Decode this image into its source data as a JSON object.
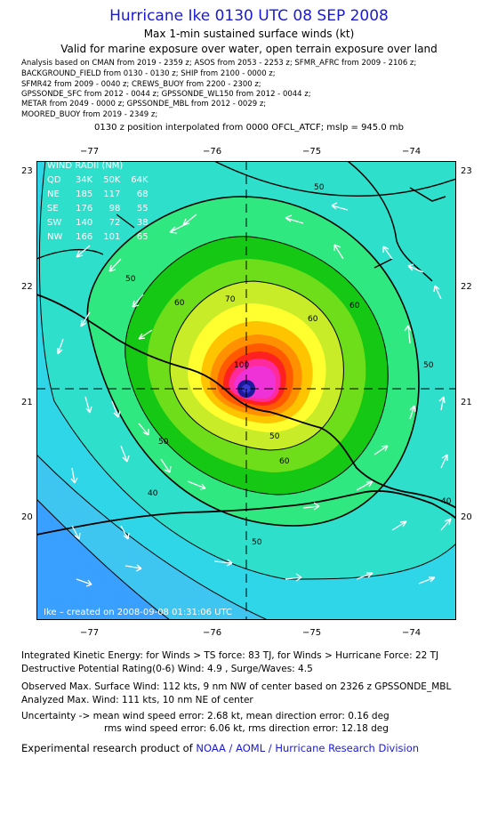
{
  "title": "Hurricane Ike 0130 UTC 08 SEP 2008",
  "subtitle1": "Max 1-min sustained surface winds (kt)",
  "subtitle2": "Valid for marine exposure over water, open terrain exposure over land",
  "analysis_lines": [
    "Analysis based on  CMAN from 2019 - 2359 z;  ASOS from 2053 - 2253 z;  SFMR_AFRC from 2009 - 2106 z;",
    "BACKGROUND_FIELD from 0130 - 0130 z;  SHIP from 2100 - 0000 z;",
    "SFMR42 from 2009 - 0040 z;  CREWS_BUOY from 2200 - 2300 z;",
    "GPSSONDE_SFC from 2012 - 0044 z;  GPSSONDE_WL150 from 2012 - 0044 z;",
    "METAR from 2049 - 0000 z;  GPSSONDE_MBL from 2012 - 0029 z;",
    "MOORED_BUOY from 2019 - 2349 z;"
  ],
  "position_line": "0130 z position interpolated from 0000 OFCL_ATCF; mslp = 945.0 mb",
  "map": {
    "lon_ticks": [
      "−77",
      "−76",
      "−75",
      "−74"
    ],
    "lat_ticks": [
      "23",
      "22",
      "21",
      "20"
    ],
    "center_marker": "hurricane-center",
    "contour_labels": [
      "50",
      "60",
      "70",
      "100",
      "60",
      "50",
      "50",
      "40",
      "40",
      "60",
      "50",
      "50",
      "60",
      "50"
    ],
    "wind_radii": {
      "header": "WIND RADII (NM)",
      "cols": [
        "QD",
        "34K",
        "50K",
        "64K"
      ],
      "rows": [
        [
          "NE",
          "185",
          "117",
          "68"
        ],
        [
          "SE",
          "176",
          "98",
          "55"
        ],
        [
          "SW",
          "140",
          "72",
          "38"
        ],
        [
          "NW",
          "166",
          "101",
          "65"
        ]
      ]
    },
    "created": "Ike – created on 2008-09-08 01:31:06 UTC",
    "colors": {
      "land_outline": "#000000",
      "axis_dash": "#000000",
      "arrow": "#ffffff"
    }
  },
  "footer": {
    "ike_line": "Integrated Kinetic Energy:  for Winds > TS force: 83 TJ,  for Winds > Hurricane Force: 22 TJ",
    "dpr_line": "Destructive Potential Rating(0-6)   Wind: 4.9 , Surge/Waves: 4.5",
    "obs_line": "Observed Max. Surface Wind: 112 kts, 9 nm NW of center based on 2326 z GPSSONDE_MBL",
    "analyzed_line": "Analyzed Max. Wind: 111 kts, 10 nm NE of center",
    "uncert_line1": "Uncertainty -> mean wind speed error: 2.68 kt,   mean direction error: 0.16 deg",
    "uncert_line2": "rms wind speed error: 6.06 kt,   rms direction error: 12.18 deg",
    "credit_prefix": "Experimental research product of ",
    "credit_link": "NOAA / AOML / Hurricane Research Division"
  }
}
